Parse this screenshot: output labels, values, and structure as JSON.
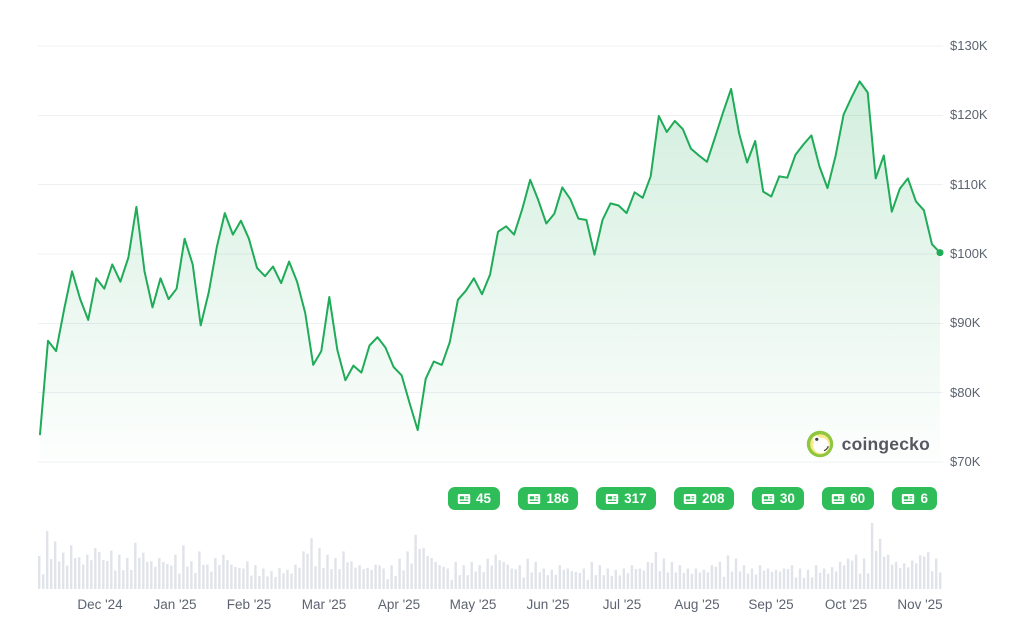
{
  "watermark": {
    "label": "coingecko"
  },
  "colors": {
    "line": "#1fab58",
    "fill_top": "rgba(31,171,88,0.20)",
    "fill_bottom": "rgba(31,171,88,0.01)",
    "badge": "#2ebd59",
    "grid": "#eef0f4",
    "volume": "#e0e3e9",
    "axis_text": "#5c6370"
  },
  "chart_data": {
    "type": "line",
    "grid": "horizontal",
    "legend": "none",
    "x_labels": [
      "Dec '24",
      "Jan '25",
      "Feb '25",
      "Mar '25",
      "Apr '25",
      "May '25",
      "Jun '25",
      "Jul '25",
      "Aug '25",
      "Sep '25",
      "Oct '25",
      "Nov '25"
    ],
    "yticks": [
      130,
      120,
      110,
      100,
      90,
      80,
      70
    ],
    "ytick_labels": [
      "$130K",
      "$120K",
      "$110K",
      "$100K",
      "$90K",
      "$80K",
      "$70K"
    ],
    "ylim": [
      70,
      130
    ],
    "unit": "USD (thousands)",
    "series": [
      {
        "name": "price",
        "values": [
          74.0,
          87.5,
          86.0,
          92.0,
          97.5,
          93.5,
          90.5,
          96.5,
          95.0,
          98.5,
          96.0,
          99.5,
          106.8,
          97.5,
          92.3,
          96.5,
          93.5,
          95.0,
          102.2,
          98.5,
          89.7,
          94.5,
          101.0,
          105.9,
          102.8,
          104.8,
          102.2,
          98.0,
          96.8,
          98.2,
          95.8,
          98.9,
          96.0,
          91.5,
          84.0,
          86.0,
          93.8,
          86.2,
          81.8,
          83.9,
          82.9,
          86.8,
          88.0,
          86.5,
          83.7,
          82.5,
          78.5,
          74.6,
          82.0,
          84.5,
          84.0,
          87.3,
          93.4,
          94.7,
          96.5,
          94.2,
          97.0,
          103.2,
          104.0,
          102.8,
          106.4,
          110.7,
          107.8,
          104.4,
          105.8,
          109.6,
          107.9,
          105.1,
          104.9,
          99.9,
          104.9,
          107.3,
          107.0,
          105.9,
          108.9,
          108.1,
          111.2,
          119.9,
          117.6,
          119.2,
          118.0,
          115.2,
          114.2,
          113.3,
          116.8,
          120.4,
          123.8,
          117.4,
          113.2,
          116.3,
          109.0,
          108.3,
          111.2,
          111.0,
          114.3,
          115.8,
          117.1,
          112.6,
          109.5,
          114.1,
          120.1,
          122.6,
          124.9,
          123.3,
          110.9,
          114.2,
          106.1,
          109.4,
          110.9,
          107.6,
          106.3,
          101.4,
          100.2
        ]
      }
    ],
    "volume_relative": [
      0.5,
      0.88,
      0.72,
      0.55,
      0.66,
      0.48,
      0.52,
      0.62,
      0.44,
      0.58,
      0.52,
      0.47,
      0.7,
      0.55,
      0.42,
      0.47,
      0.38,
      0.52,
      0.66,
      0.42,
      0.57,
      0.37,
      0.47,
      0.52,
      0.37,
      0.32,
      0.42,
      0.36,
      0.31,
      0.27,
      0.32,
      0.29,
      0.37,
      0.57,
      0.77,
      0.62,
      0.52,
      0.47,
      0.57,
      0.42,
      0.36,
      0.32,
      0.37,
      0.31,
      0.36,
      0.46,
      0.57,
      0.82,
      0.62,
      0.47,
      0.36,
      0.31,
      0.41,
      0.36,
      0.41,
      0.36,
      0.46,
      0.52,
      0.41,
      0.31,
      0.36,
      0.46,
      0.41,
      0.31,
      0.29,
      0.36,
      0.31,
      0.26,
      0.31,
      0.41,
      0.36,
      0.31,
      0.29,
      0.31,
      0.36,
      0.31,
      0.41,
      0.56,
      0.46,
      0.41,
      0.36,
      0.31,
      0.31,
      0.29,
      0.36,
      0.41,
      0.51,
      0.46,
      0.36,
      0.31,
      0.36,
      0.31,
      0.29,
      0.31,
      0.36,
      0.31,
      0.29,
      0.36,
      0.31,
      0.33,
      0.41,
      0.46,
      0.52,
      0.46,
      1.0,
      0.76,
      0.52,
      0.41,
      0.39,
      0.43,
      0.51,
      0.56,
      0.46
    ],
    "news_badges": [
      {
        "count": "45"
      },
      {
        "count": "186"
      },
      {
        "count": "317"
      },
      {
        "count": "208"
      },
      {
        "count": "30"
      },
      {
        "count": "60"
      },
      {
        "count": "6"
      }
    ]
  }
}
